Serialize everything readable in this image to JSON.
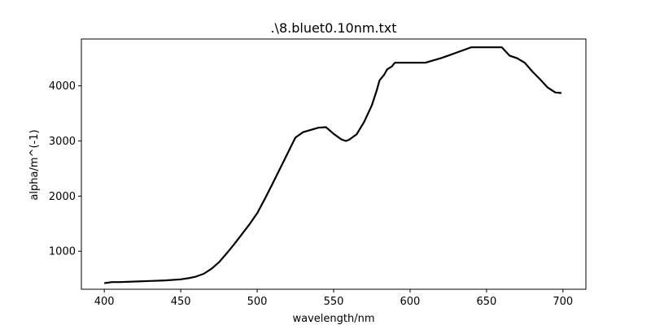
{
  "chart_data": {
    "type": "line",
    "title": ".\\8.bluet0.10nm.txt",
    "xlabel": "wavelength/nm",
    "ylabel": "alpha/m^(-1)",
    "xlim": [
      385,
      715
    ],
    "ylim": [
      310,
      4850
    ],
    "xticks": [
      400,
      450,
      500,
      550,
      600,
      650,
      700
    ],
    "yticks": [
      1000,
      2000,
      3000,
      4000
    ],
    "xtick_labels": [
      "400",
      "450",
      "500",
      "550",
      "600",
      "650",
      "700"
    ],
    "ytick_labels": [
      "1000",
      "2000",
      "3000",
      "4000"
    ],
    "grid": false,
    "legend": "none",
    "series": [
      {
        "color": "#000000",
        "x": [
          400,
          405,
          410,
          420,
          430,
          440,
          450,
          455,
          460,
          465,
          470,
          475,
          480,
          485,
          490,
          495,
          500,
          505,
          510,
          515,
          520,
          525,
          530,
          535,
          540,
          545,
          550,
          555,
          558,
          560,
          565,
          570,
          575,
          578,
          580,
          583,
          585,
          588,
          590,
          600,
          610,
          620,
          625,
          630,
          635,
          640,
          650,
          660,
          665,
          670,
          675,
          680,
          685,
          690,
          695,
          699
        ],
        "y": [
          420,
          440,
          440,
          450,
          460,
          470,
          490,
          510,
          540,
          590,
          680,
          800,
          960,
          1130,
          1310,
          1490,
          1690,
          1950,
          2220,
          2500,
          2780,
          3060,
          3160,
          3200,
          3240,
          3250,
          3130,
          3030,
          3000,
          3020,
          3120,
          3350,
          3650,
          3900,
          4100,
          4200,
          4300,
          4350,
          4420,
          4420,
          4420,
          4500,
          4550,
          4600,
          4650,
          4700,
          4700,
          4700,
          4550,
          4500,
          4420,
          4260,
          4120,
          3970,
          3880,
          3870
        ]
      }
    ]
  }
}
